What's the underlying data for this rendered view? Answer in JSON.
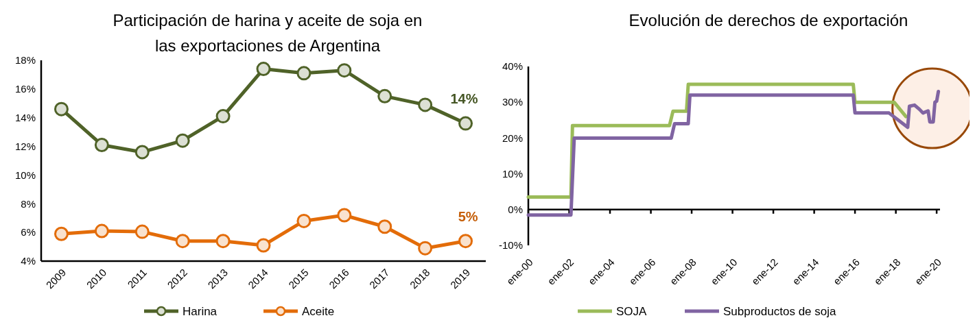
{
  "chart_data": [
    {
      "type": "line",
      "title": "Participación de harina y aceite de soja en las exportaciones de Argentina",
      "categories": [
        "2009",
        "2010",
        "2011",
        "2012",
        "2013",
        "2014",
        "2015",
        "2016",
        "2017",
        "2018",
        "2019"
      ],
      "series": [
        {
          "name": "Harina",
          "color": "#4f6228",
          "values": [
            14.6,
            12.1,
            11.6,
            12.4,
            14.1,
            17.4,
            17.1,
            17.3,
            15.5,
            14.9,
            13.6
          ]
        },
        {
          "name": "Aceite",
          "color": "#e36c09",
          "values": [
            5.9,
            6.1,
            6.05,
            5.4,
            5.4,
            5.1,
            6.8,
            7.2,
            6.4,
            4.9,
            5.4
          ]
        }
      ],
      "ylim": [
        4,
        18
      ],
      "yticks": [
        {
          "value": 4,
          "label": "4%"
        },
        {
          "value": 6,
          "label": "6%"
        },
        {
          "value": 8,
          "label": "8%"
        },
        {
          "value": 10,
          "label": "10%"
        },
        {
          "value": 12,
          "label": "12%"
        },
        {
          "value": 14,
          "label": "14%"
        },
        {
          "value": 16,
          "label": "16%"
        },
        {
          "value": 18,
          "label": "18%"
        }
      ],
      "annotations": [
        "14%",
        "5%"
      ],
      "marker": "circle",
      "legend": "bottom"
    },
    {
      "type": "line",
      "title": "Evolución de derechos de exportación",
      "series": [
        {
          "name": "SOJA",
          "color": "#9bbb59",
          "x": [
            "2000-01",
            "2002-02",
            "2002-03",
            "2006-12",
            "2007-02",
            "2007-10",
            "2007-11",
            "2015-12",
            "2016-01",
            "2017-12",
            "2018-07"
          ],
          "values": [
            3.5,
            3.5,
            23.5,
            23.5,
            27.5,
            27.5,
            35,
            35,
            30,
            30,
            26
          ]
        },
        {
          "name": "Subproductos de soja",
          "color": "#8064a2",
          "x": [
            "2000-01",
            "2002-02",
            "2002-04",
            "2007-01",
            "2007-03",
            "2007-11",
            "2007-12",
            "2015-12",
            "2016-01",
            "2017-09",
            "2018-08",
            "2018-09",
            "2018-12",
            "2019-03",
            "2019-05",
            "2019-08",
            "2019-09",
            "2019-11",
            "2019-12",
            "2020-01",
            "2020-02"
          ],
          "values": [
            -1.5,
            -1.5,
            20,
            20,
            24,
            24,
            32,
            32,
            27,
            27,
            23,
            28.9,
            29.2,
            28,
            27,
            27.6,
            24.5,
            24.5,
            30,
            30.3,
            33
          ]
        }
      ],
      "xlim": [
        "2000-01",
        "2020-03"
      ],
      "xticks": [
        {
          "value": "2000-01",
          "label": "ene-00"
        },
        {
          "value": "2002-01",
          "label": "ene-02"
        },
        {
          "value": "2004-01",
          "label": "ene-04"
        },
        {
          "value": "2006-01",
          "label": "ene-06"
        },
        {
          "value": "2008-01",
          "label": "ene-08"
        },
        {
          "value": "2010-01",
          "label": "ene-10"
        },
        {
          "value": "2012-01",
          "label": "ene-12"
        },
        {
          "value": "2014-01",
          "label": "ene-14"
        },
        {
          "value": "2016-01",
          "label": "ene-16"
        },
        {
          "value": "2018-01",
          "label": "ene-18"
        },
        {
          "value": "2020-01",
          "label": "ene-20"
        }
      ],
      "ylim": [
        -10,
        40
      ],
      "yticks": [
        {
          "value": -10,
          "label": "-10%"
        },
        {
          "value": 0,
          "label": "0%"
        },
        {
          "value": 10,
          "label": "10%"
        },
        {
          "value": 20,
          "label": "20%"
        },
        {
          "value": 30,
          "label": "30%"
        },
        {
          "value": 40,
          "label": "40%"
        }
      ],
      "marker": "none",
      "legend": "bottom"
    }
  ]
}
